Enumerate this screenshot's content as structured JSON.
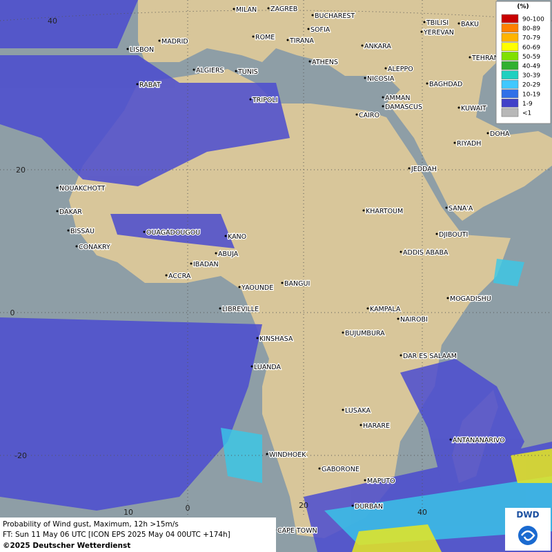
{
  "map": {
    "cities": [
      "MILAN",
      "ZAGREB",
      "BUCHAREST",
      "TBILISI",
      "BAKU",
      "MADRID",
      "ROME",
      "SOFIA",
      "TIRANA",
      "ANKARA",
      "YEREVAN",
      "LISBON",
      "TEHRAN",
      "ALGIERS",
      "TUNIS",
      "ATHENS",
      "ALEPPO",
      "NICOSIA",
      "BAGHDAD",
      "RABAT",
      "TRIPOLI",
      "AMMAN",
      "DAMASCUS",
      "KUWAIT",
      "CAIRO",
      "DOHA",
      "RIYADH",
      "JEDDAH",
      "NOUAKCHOTT",
      "DAKAR",
      "KHARTOUM",
      "SANA'A",
      "BISSAU",
      "DJIBOUTI",
      "OUAGADOUGOU",
      "KANO",
      "CONAKRY",
      "ABUJA",
      "ADDIS ABABA",
      "IBADAN",
      "ACCRA",
      "YAOUNDE",
      "BANGUI",
      "MOGADISHU",
      "LIBREVILLE",
      "KAMPALA",
      "NAIROBI",
      "KINSHASA",
      "BUJUMBURA",
      "DAR ES SALAAM",
      "LUANDA",
      "LUSAKA",
      "HARARE",
      "ANTANANARIVO",
      "WINDHOEK",
      "GABORONE",
      "MAPUTO",
      "DURBAN",
      "CAPE TOWN"
    ],
    "lat_labels": [
      "40",
      "20",
      "0",
      "-20"
    ],
    "lon_labels": [
      "10",
      "0",
      "20",
      "40"
    ]
  },
  "legend": {
    "title": "(%)",
    "items": [
      {
        "label": "90-100",
        "color": "#c80000"
      },
      {
        "label": "80-89",
        "color": "#ff8000"
      },
      {
        "label": "70-79",
        "color": "#ffb400"
      },
      {
        "label": "60-69",
        "color": "#ffff00"
      },
      {
        "label": "50-59",
        "color": "#80e000"
      },
      {
        "label": "40-49",
        "color": "#30b030"
      },
      {
        "label": "30-39",
        "color": "#20d0c0"
      },
      {
        "label": "20-29",
        "color": "#40c8ff"
      },
      {
        "label": "10-19",
        "color": "#3070e8"
      },
      {
        "label": "1-9",
        "color": "#4040c8"
      },
      {
        "label": "<1",
        "color": "#b8b8b8"
      }
    ]
  },
  "footer": {
    "line1": "Probability of Wind gust, Maximum, 12h >15m/s",
    "line2": "FT: Sun 11 May 06 UTC [ICON EPS 2025 May 04 00UTC +174h]",
    "line3": "©2025 Deutscher Wetterdienst"
  },
  "logo": "DWD"
}
